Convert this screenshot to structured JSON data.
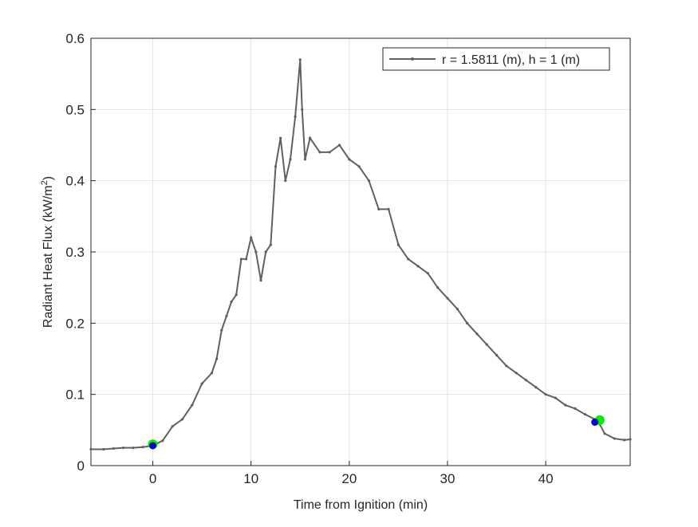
{
  "chart_data": {
    "type": "line",
    "xlabel": "Time from Ignition (min)",
    "ylabel": {
      "text": "Radiant Heat Flux (kW/m",
      "superscript": "2",
      "suffix": ")"
    },
    "x": [
      -6.3,
      -5,
      -4,
      -3,
      -2,
      -1,
      0,
      1,
      2,
      3,
      4,
      5,
      6,
      6.5,
      7,
      7.5,
      8,
      8.5,
      9,
      9.5,
      10,
      10.5,
      11,
      11.5,
      12,
      12.5,
      13,
      13.5,
      14,
      14.5,
      15,
      15.2,
      15.5,
      16,
      17,
      18,
      19,
      20,
      21,
      22,
      23,
      24,
      25,
      26,
      27,
      28,
      29,
      30,
      31,
      32,
      33,
      34,
      35,
      36,
      37,
      38,
      39,
      40,
      41,
      42,
      43,
      44,
      45,
      45.5,
      46,
      47,
      48,
      48.6
    ],
    "series": [
      {
        "name": "r = 1.5811 (m), h = 1 (m)",
        "color": "#606060",
        "values": [
          0.023,
          0.023,
          0.024,
          0.025,
          0.025,
          0.026,
          0.028,
          0.035,
          0.055,
          0.065,
          0.085,
          0.115,
          0.13,
          0.15,
          0.19,
          0.21,
          0.23,
          0.24,
          0.29,
          0.29,
          0.32,
          0.3,
          0.26,
          0.3,
          0.31,
          0.42,
          0.46,
          0.4,
          0.43,
          0.49,
          0.57,
          0.5,
          0.43,
          0.46,
          0.44,
          0.44,
          0.45,
          0.43,
          0.42,
          0.4,
          0.36,
          0.36,
          0.31,
          0.29,
          0.28,
          0.27,
          0.25,
          0.235,
          0.22,
          0.2,
          0.185,
          0.17,
          0.155,
          0.14,
          0.13,
          0.12,
          0.11,
          0.1,
          0.095,
          0.085,
          0.08,
          0.072,
          0.065,
          0.058,
          0.045,
          0.038,
          0.036,
          0.037
        ]
      }
    ],
    "markers": [
      {
        "color": "#00ee00",
        "x": [
          0,
          45.5
        ],
        "values": [
          0.03,
          0.064
        ]
      },
      {
        "color": "#0000cc",
        "x": [
          0,
          45
        ],
        "values": [
          0.028,
          0.061
        ]
      }
    ],
    "xlim": [
      -6.3,
      48.6
    ],
    "xticks": [
      0,
      10,
      20,
      30,
      40
    ],
    "ylim": [
      0,
      0.6
    ],
    "yticks": [
      0,
      0.1,
      0.2,
      0.3,
      0.4,
      0.5,
      0.6
    ],
    "grid": true,
    "legend": "upper right"
  }
}
